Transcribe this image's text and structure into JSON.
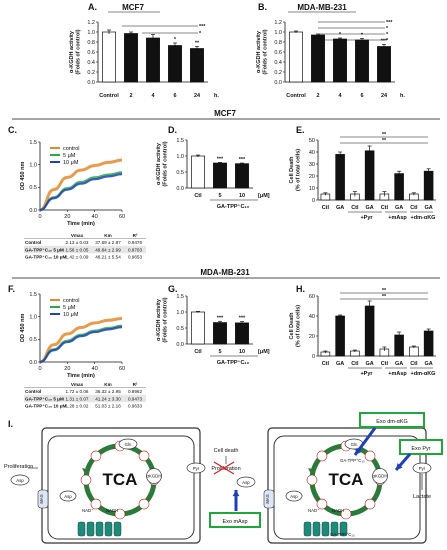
{
  "panels": {
    "A": {
      "letter": "A.",
      "title": "MCF7",
      "ylabel": "α-KGDH activity\n(Folds of control)",
      "yticks": [
        "0.0",
        "0.2",
        "0.4",
        "0.6",
        "0.8",
        "1.0",
        "1.2"
      ],
      "categories": [
        "Control",
        "2",
        "4",
        "6",
        "24"
      ],
      "unit": "h.",
      "stars": [
        "",
        "",
        "",
        "*",
        "**"
      ],
      "sig": [
        "***",
        "*"
      ]
    },
    "B": {
      "letter": "B.",
      "title": "MDA-MB-231",
      "ylabel": "α-KGDH activity\n(Folds of control)",
      "yticks": [
        "0.0",
        "0.2",
        "0.4",
        "0.6",
        "0.8",
        "1.0",
        "1.2"
      ],
      "categories": [
        "Control",
        "2",
        "4",
        "6",
        "24"
      ],
      "unit": "h.",
      "stars": [
        "",
        "",
        "*",
        "*",
        "***"
      ],
      "sig": [
        "***",
        "*",
        "*",
        "*"
      ]
    },
    "mcf7_header": "MCF7",
    "mda_header": "MDA-MB-231",
    "C": {
      "letter": "C.",
      "ylabel": "OD 450 nm",
      "xlabel": "Time (min)",
      "xticks": [
        "0",
        "20",
        "40",
        "60"
      ],
      "yticks": [
        "0.0",
        "0.5",
        "1.0",
        "1.5"
      ],
      "legend": [
        "control",
        "5 μM",
        "10 μM"
      ],
      "table": {
        "headers": [
          "",
          "Vmax",
          "Km",
          "R²"
        ],
        "rows": [
          [
            "Control",
            "2.13 ± 0.03",
            "37.69 ± 2.87",
            "0.9476"
          ],
          [
            "GA-TPP⁺C₁₀ 5 μM",
            "1.56 ± 0.05",
            "49.84 ± 2.99",
            "0.9703"
          ],
          [
            "GA-TPP⁺C₁₀ 10 μM",
            "1.42 ± 0.09",
            "46.21 ± 5.54",
            "0.9653"
          ]
        ]
      }
    },
    "D": {
      "letter": "D.",
      "ylabel": "α-KGDH activity\n(Folds of control)",
      "yticks": [
        "0.0",
        "0.5",
        "1.0",
        "1.5"
      ],
      "categories": [
        "Ctl",
        "5",
        "10"
      ],
      "unit": "[μM]",
      "drug": "GA-TPP⁺C₁₀",
      "stars": [
        "",
        "***",
        "***"
      ]
    },
    "E": {
      "letter": "E.",
      "ylabel": "Cell Death\n(% of total cells)",
      "yticks": [
        "0",
        "10",
        "20",
        "30",
        "40",
        "50"
      ],
      "categories": [
        "Ctl",
        "GA",
        "Ctl",
        "GA",
        "Ctl",
        "GA",
        "Ctl",
        "GA"
      ],
      "groups": [
        "+Pyr",
        "+mAsp",
        "+dm-αKG"
      ],
      "sig": [
        "**",
        "**"
      ]
    },
    "F": {
      "letter": "F.",
      "ylabel": "OD 450 nm",
      "xlabel": "Time (min)",
      "xticks": [
        "0",
        "20",
        "40",
        "60"
      ],
      "yticks": [
        "0.0",
        "0.5",
        "1.0",
        "1.5"
      ],
      "legend": [
        "control",
        "5 μM",
        "10 μM"
      ],
      "table": {
        "headers": [
          "",
          "Vmax",
          "Km",
          "R²"
        ],
        "rows": [
          [
            "Control",
            "1.72 ± 0.06",
            "36.32 ± 2.95",
            "0.8962"
          ],
          [
            "GA-TPP⁺C₁₀ 5 μM",
            "1.31 ± 0.07",
            "41.24 ± 3.30",
            "0.9473"
          ],
          [
            "GA-TPP⁺C₁₀ 10 μM",
            "1.28 ± 0.02",
            "51.03 ± 2.16",
            "0.9633"
          ]
        ]
      }
    },
    "G": {
      "letter": "G.",
      "ylabel": "α-KGDH activity\n(Folds of control)",
      "yticks": [
        "0.0",
        "0.5",
        "1.0",
        "1.5"
      ],
      "categories": [
        "Ctl",
        "5",
        "10"
      ],
      "unit": "[μM]",
      "drug": "GA-TPP⁺C₁₀",
      "stars": [
        "",
        "***",
        "***"
      ]
    },
    "H": {
      "letter": "H.",
      "ylabel": "Cell Death\n(% of total cells)",
      "yticks": [
        "0",
        "20",
        "40",
        "60"
      ],
      "categories": [
        "Ctl",
        "GA",
        "Ctl",
        "GA",
        "Ctl",
        "GA",
        "Ctl",
        "GA"
      ],
      "groups": [
        "+Pyr",
        "+mAsp",
        "+dm-αKG"
      ],
      "sig": [
        "**",
        "**"
      ]
    }
  },
  "diagram": {
    "letter": "I.",
    "tca": "TCA",
    "left": {
      "proliferation": "Proliferation",
      "asp": "Asp",
      "mas": "MAS",
      "pyr": "Pyr",
      "gln": "Gln",
      "akgdh": "αKGDH",
      "asp2": "Asp",
      "nad": "NAD⁺",
      "nadh": "NADH"
    },
    "right": {
      "cell_death": "Cell death",
      "proliferation": "Proliferation",
      "pyr": "Pyr",
      "lactate": "Lactate",
      "gln": "Gln",
      "inhibitor": "GA-TPP⁺C₁₀",
      "inhibitor2": "GA-TPP⁺C₁₀",
      "mas": "MAS",
      "asp": "Asp",
      "nad": "NAD⁺",
      "nadh": "NADH"
    },
    "boxes": [
      "Exo dm-αKG",
      "Exo Pyr",
      "Exo mAsp"
    ],
    "small": [
      "Glutamate",
      "αKG",
      "Succ",
      "Fum",
      "Mal",
      "OAA",
      "Cit",
      "Isocit",
      "SuccCoA"
    ]
  },
  "colors": {
    "control": "#e58a2c",
    "low": "#2aa84a",
    "high": "#1f3fb8",
    "green_box": "#1fa83a",
    "blue_arrow": "#1f3fb8",
    "tca": "#2b7a3a",
    "red": "#d92020"
  },
  "chart_data": [
    {
      "type": "bar",
      "panel": "A",
      "title": "MCF7",
      "ylabel": "α-KGDH activity (Folds of control)",
      "categories": [
        "Control",
        "2",
        "4",
        "6",
        "24"
      ],
      "values": [
        1.0,
        0.97,
        0.88,
        0.73,
        0.67
      ],
      "errors": [
        0.04,
        0.03,
        0.07,
        0.05,
        0.04
      ],
      "ylim": [
        0,
        1.2
      ]
    },
    {
      "type": "bar",
      "panel": "B",
      "title": "MDA-MB-231",
      "ylabel": "α-KGDH activity (Folds of control)",
      "categories": [
        "Control",
        "2",
        "4",
        "6",
        "24"
      ],
      "values": [
        1.0,
        0.94,
        0.86,
        0.84,
        0.71
      ],
      "errors": [
        0.02,
        0.02,
        0.02,
        0.03,
        0.04
      ],
      "ylim": [
        0,
        1.2
      ]
    },
    {
      "type": "line",
      "panel": "C",
      "xlabel": "Time (min)",
      "ylabel": "OD 450 nm",
      "xlim": [
        0,
        60
      ],
      "ylim": [
        0,
        1.5
      ],
      "series": [
        {
          "name": "control",
          "x": [
            0,
            10,
            20,
            30,
            40,
            50,
            60
          ],
          "y": [
            0,
            0.45,
            0.72,
            0.88,
            0.98,
            1.05,
            1.1
          ]
        },
        {
          "name": "5 μM",
          "x": [
            0,
            10,
            20,
            30,
            40,
            50,
            60
          ],
          "y": [
            0,
            0.28,
            0.48,
            0.62,
            0.72,
            0.78,
            0.83
          ]
        },
        {
          "name": "10 μM",
          "x": [
            0,
            10,
            20,
            30,
            40,
            50,
            60
          ],
          "y": [
            0,
            0.26,
            0.45,
            0.58,
            0.68,
            0.74,
            0.79
          ]
        }
      ]
    },
    {
      "type": "bar",
      "panel": "D",
      "ylabel": "α-KGDH activity (Folds of control)",
      "categories": [
        "Ctl",
        "5",
        "10"
      ],
      "values": [
        1.0,
        0.78,
        0.76
      ],
      "errors": [
        0.03,
        0.02,
        0.02
      ],
      "ylim": [
        0,
        1.5
      ]
    },
    {
      "type": "bar",
      "panel": "E",
      "ylabel": "Cell Death (% of total cells)",
      "categories": [
        "Ctl",
        "GA",
        "Ctl",
        "GA",
        "Ctl",
        "GA",
        "Ctl",
        "GA"
      ],
      "values": [
        5,
        38,
        5,
        41,
        5,
        22,
        5,
        24
      ],
      "errors": [
        1,
        2,
        2,
        4,
        2,
        2,
        1,
        2
      ],
      "ylim": [
        0,
        50
      ]
    },
    {
      "type": "line",
      "panel": "F",
      "xlabel": "Time (min)",
      "ylabel": "OD 450 nm",
      "xlim": [
        0,
        60
      ],
      "ylim": [
        0,
        1.5
      ],
      "series": [
        {
          "name": "control",
          "x": [
            0,
            10,
            20,
            30,
            40,
            50,
            60
          ],
          "y": [
            0,
            0.38,
            0.62,
            0.76,
            0.86,
            0.92,
            0.96
          ]
        },
        {
          "name": "5 μM",
          "x": [
            0,
            10,
            20,
            30,
            40,
            50,
            60
          ],
          "y": [
            0,
            0.28,
            0.47,
            0.6,
            0.69,
            0.75,
            0.8
          ]
        },
        {
          "name": "10 μM",
          "x": [
            0,
            10,
            20,
            30,
            40,
            50,
            60
          ],
          "y": [
            0,
            0.26,
            0.44,
            0.57,
            0.66,
            0.72,
            0.77
          ]
        }
      ]
    },
    {
      "type": "bar",
      "panel": "G",
      "ylabel": "α-KGDH activity (Folds of control)",
      "categories": [
        "Ctl",
        "5",
        "10"
      ],
      "values": [
        1.0,
        0.67,
        0.66
      ],
      "errors": [
        0.02,
        0.04,
        0.04
      ],
      "ylim": [
        0,
        1.5
      ]
    },
    {
      "type": "bar",
      "panel": "H",
      "ylabel": "Cell Death (% of total cells)",
      "categories": [
        "Ctl",
        "GA",
        "Ctl",
        "GA",
        "Ctl",
        "GA",
        "Ctl",
        "GA"
      ],
      "values": [
        4,
        40,
        5,
        50,
        7,
        21,
        9,
        25
      ],
      "errors": [
        1,
        1,
        1,
        5,
        2,
        3,
        1,
        2
      ],
      "ylim": [
        0,
        60
      ]
    }
  ]
}
